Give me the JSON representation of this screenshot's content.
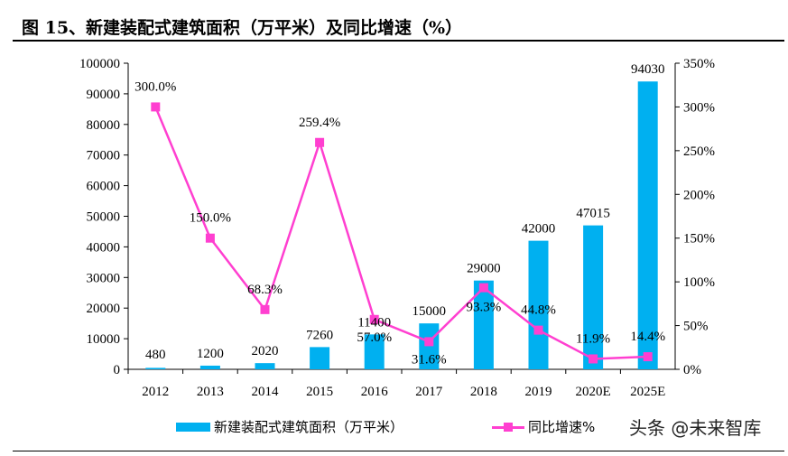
{
  "title": "图 15、新建装配式建筑面积（万平米）及同比增速（%）",
  "watermark": "头条 @未来智库",
  "colors": {
    "bar": "#00B0F0",
    "line": "#FF3FD0"
  },
  "chart_data": {
    "type": "bar+line",
    "categories": [
      "2012",
      "2013",
      "2014",
      "2015",
      "2016",
      "2017",
      "2018",
      "2019",
      "2020E",
      "2025E"
    ],
    "series": [
      {
        "name": "新建装配式建筑面积（万平米）",
        "type": "bar",
        "axis": "left",
        "values": [
          480,
          1200,
          2020,
          7260,
          11400,
          15000,
          29000,
          42000,
          47015,
          94030
        ],
        "labels": [
          "480",
          "1200",
          "2020",
          "7260",
          "11400",
          "15000",
          "29000",
          "42000",
          "47015",
          "94030"
        ]
      },
      {
        "name": "同比增速%",
        "type": "line",
        "axis": "right",
        "values": [
          300.0,
          150.0,
          68.3,
          259.4,
          57.0,
          31.6,
          93.3,
          44.8,
          11.9,
          14.4
        ],
        "labels": [
          "300.0%",
          "150.0%",
          "68.3%",
          "259.4%",
          "57.0%",
          "31.6%",
          "93.3%",
          "44.8%",
          "11.9%",
          "14.4%"
        ]
      }
    ],
    "left_axis": {
      "ylim": [
        0,
        100000
      ],
      "ticks": [
        "0",
        "10000",
        "20000",
        "30000",
        "40000",
        "50000",
        "60000",
        "70000",
        "80000",
        "90000",
        "100000"
      ]
    },
    "right_axis": {
      "ylim": [
        0,
        350
      ],
      "ticks": [
        "0%",
        "50%",
        "100%",
        "150%",
        "200%",
        "250%",
        "300%",
        "350%"
      ]
    },
    "legend_position": "bottom",
    "grid": false
  }
}
